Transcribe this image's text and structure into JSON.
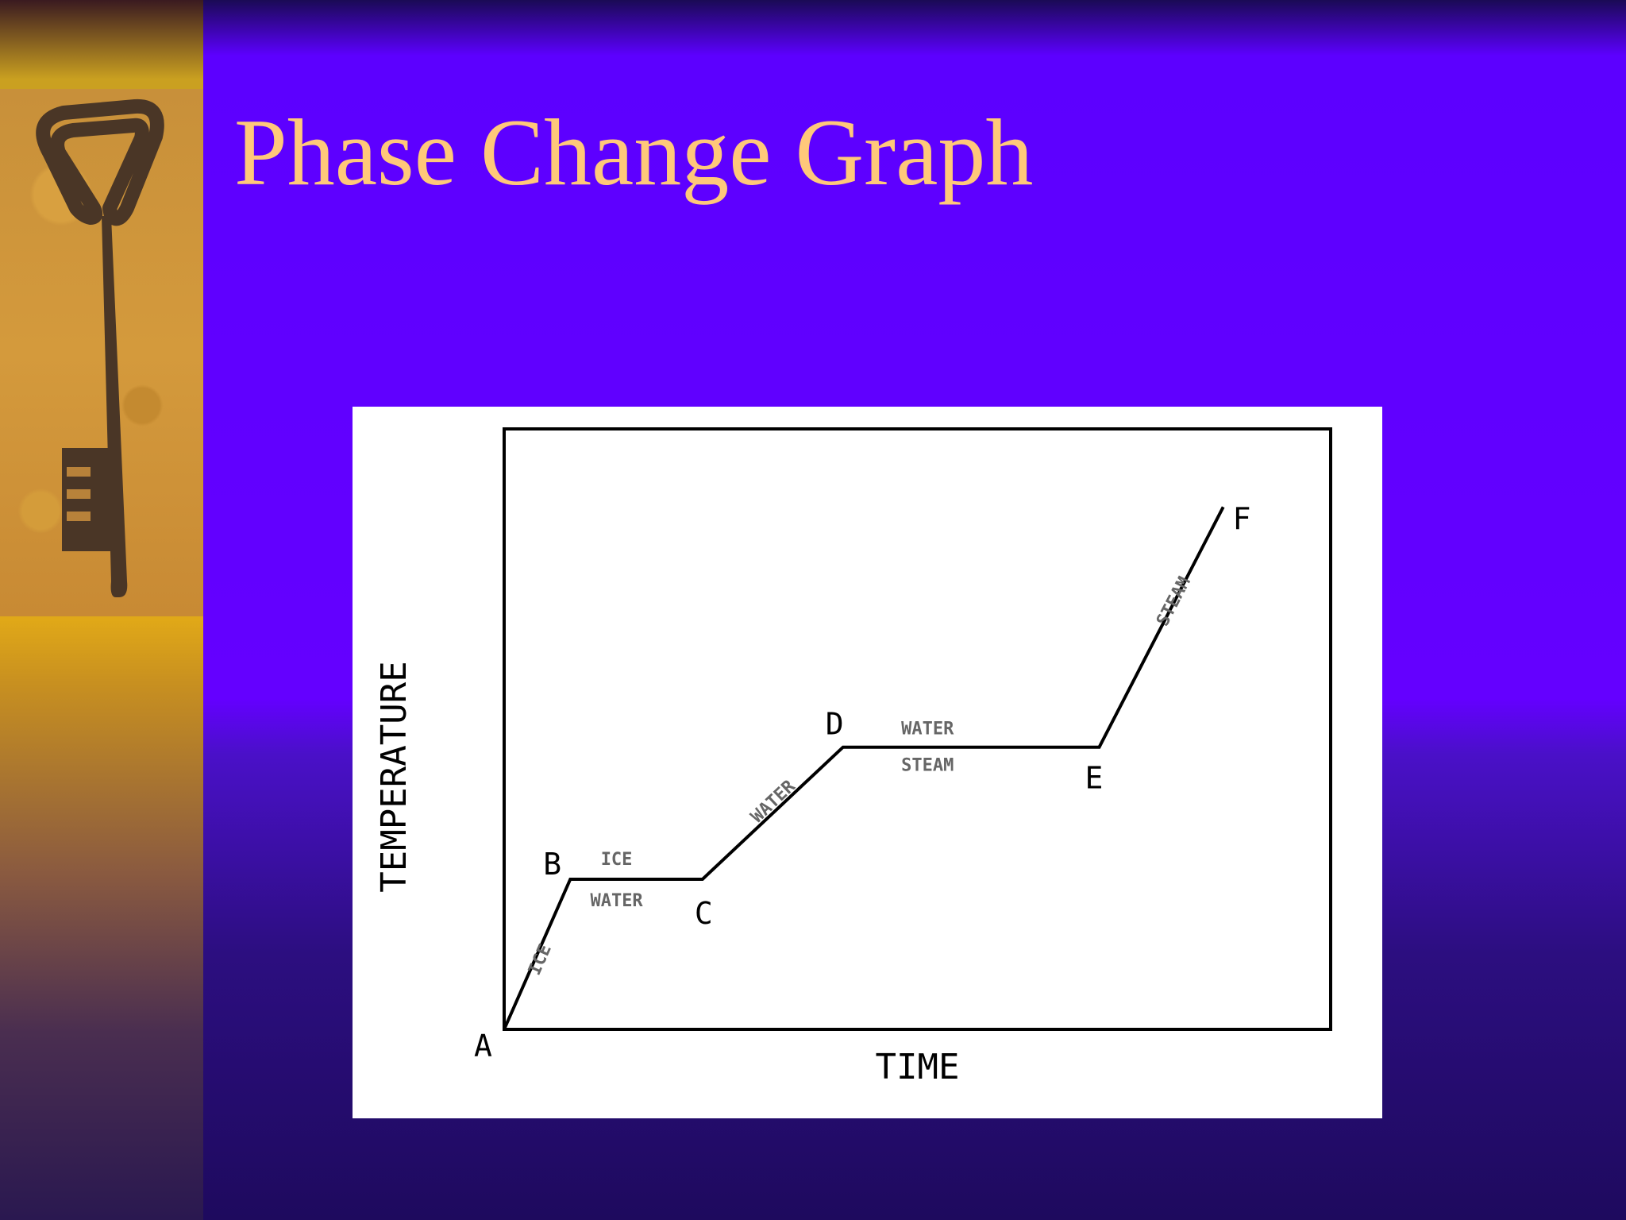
{
  "slide": {
    "title": "Phase Change Graph",
    "colors": {
      "background": "#6400ff",
      "title": "#ffc87a",
      "sidebar": "#e0a818"
    },
    "sidebar_image": "key-on-sand"
  },
  "chart_data": {
    "type": "line",
    "title": "",
    "xlabel": "TIME",
    "ylabel": "TEMPERATURE",
    "grid": false,
    "xlim": [
      0,
      10
    ],
    "ylim": [
      0,
      10
    ],
    "series": [
      {
        "points": [
          {
            "x": 0,
            "y": 0,
            "label": "A"
          },
          {
            "x": 0.8,
            "y": 2.5,
            "label": "B"
          },
          {
            "x": 2.4,
            "y": 2.5,
            "label": "C"
          },
          {
            "x": 4.1,
            "y": 4.7,
            "label": "D"
          },
          {
            "x": 7.2,
            "y": 4.7,
            "label": "E"
          },
          {
            "x": 8.7,
            "y": 8.7,
            "label": "F"
          }
        ]
      }
    ],
    "annotations": [
      {
        "text": "ICE",
        "segment": "A-B"
      },
      {
        "text": "ICE",
        "segment": "B-C"
      },
      {
        "text": "WATER",
        "segment": "B-C"
      },
      {
        "text": "WATER",
        "segment": "C-D"
      },
      {
        "text": "WATER",
        "segment": "D-E"
      },
      {
        "text": "STEAM",
        "segment": "D-E"
      },
      {
        "text": "STEAM",
        "segment": "E-F"
      }
    ]
  }
}
